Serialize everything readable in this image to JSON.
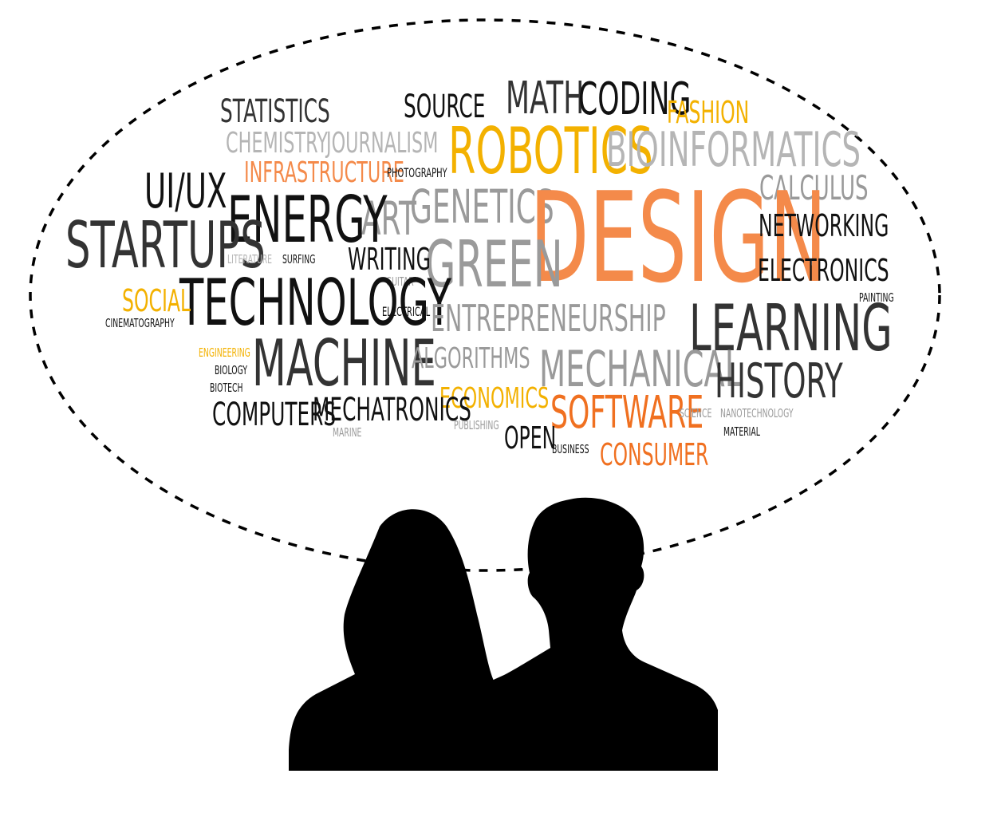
{
  "colors": {
    "black": "#111111",
    "dark_gray": "#333333",
    "gray": "#9a9a9a",
    "light_gray": "#b5b5b5",
    "orange": "#f48a4a",
    "orange_deep": "#f07020",
    "gold": "#f3b100",
    "silhouette": "#000000",
    "bubble_outline": "#000000"
  },
  "words": [
    {
      "id": "statistics",
      "text": "STATISTICS",
      "color": "dark_gray"
    },
    {
      "id": "source",
      "text": "SOURCE",
      "color": "black"
    },
    {
      "id": "math",
      "text": "MATH",
      "color": "dark_gray"
    },
    {
      "id": "coding",
      "text": "CODING",
      "color": "black"
    },
    {
      "id": "fashion",
      "text": "FASHION",
      "color": "gold"
    },
    {
      "id": "chemistry",
      "text": "CHEMISTRY",
      "color": "light_gray"
    },
    {
      "id": "journalism",
      "text": "JOURNALISM",
      "color": "light_gray"
    },
    {
      "id": "robotics",
      "text": "ROBOTICS",
      "color": "gold"
    },
    {
      "id": "bioinformatics",
      "text": "BIOINFORMATICS",
      "color": "light_gray"
    },
    {
      "id": "infrastructure",
      "text": "INFRASTRUCTURE",
      "color": "orange"
    },
    {
      "id": "photography",
      "text": "PHOTOGRAPHY",
      "color": "black"
    },
    {
      "id": "ui-ux",
      "text": "UI/UX",
      "color": "black"
    },
    {
      "id": "calculus",
      "text": "CALCULUS",
      "color": "gray"
    },
    {
      "id": "genetics",
      "text": "GENETICS",
      "color": "gray"
    },
    {
      "id": "art",
      "text": "ART",
      "color": "gray"
    },
    {
      "id": "design",
      "text": "DESIGN",
      "color": "orange"
    },
    {
      "id": "energy",
      "text": "ENERGY",
      "color": "black"
    },
    {
      "id": "networking",
      "text": "NETWORKING",
      "color": "black"
    },
    {
      "id": "startups",
      "text": "STARTUPS",
      "color": "dark_gray"
    },
    {
      "id": "green",
      "text": "GREEN",
      "color": "gray"
    },
    {
      "id": "writing",
      "text": "WRITING",
      "color": "black"
    },
    {
      "id": "literature",
      "text": "LITERATURE",
      "color": "light_gray"
    },
    {
      "id": "surfing",
      "text": "SURFING",
      "color": "black"
    },
    {
      "id": "electronics",
      "text": "ELECTRONICS",
      "color": "black"
    },
    {
      "id": "guitar",
      "text": "GUITAR",
      "color": "gray"
    },
    {
      "id": "technology",
      "text": "TECHNOLOGY",
      "color": "black"
    },
    {
      "id": "social",
      "text": "SOCIAL",
      "color": "gold"
    },
    {
      "id": "painting",
      "text": "PAINTING",
      "color": "black"
    },
    {
      "id": "entrepreneurship",
      "text": "ENTREPRENEURSHIP",
      "color": "gray"
    },
    {
      "id": "electrical",
      "text": "ELECTRICAL",
      "color": "black"
    },
    {
      "id": "cinematography",
      "text": "CINEMATOGRAPHY",
      "color": "black"
    },
    {
      "id": "learning",
      "text": "LEARNING",
      "color": "dark_gray"
    },
    {
      "id": "engineering",
      "text": "ENGINEERING",
      "color": "gold"
    },
    {
      "id": "machine",
      "text": "MACHINE",
      "color": "dark_gray"
    },
    {
      "id": "algorithms",
      "text": "ALGORITHMS",
      "color": "gray"
    },
    {
      "id": "mechanical",
      "text": "MECHANICAL",
      "color": "gray"
    },
    {
      "id": "biology",
      "text": "BIOLOGY",
      "color": "black"
    },
    {
      "id": "history",
      "text": "HISTORY",
      "color": "dark_gray"
    },
    {
      "id": "biotech",
      "text": "BIOTECH",
      "color": "black"
    },
    {
      "id": "economics",
      "text": "ECONOMICS",
      "color": "gold"
    },
    {
      "id": "computers",
      "text": "COMPUTERS",
      "color": "black"
    },
    {
      "id": "mechatronics",
      "text": "MECHATRONICS",
      "color": "black"
    },
    {
      "id": "software",
      "text": "SOFTWARE",
      "color": "orange_deep"
    },
    {
      "id": "science",
      "text": "SCIENCE",
      "color": "gray"
    },
    {
      "id": "nanotechnology",
      "text": "NANOTECHNOLOGY",
      "color": "gray"
    },
    {
      "id": "publishing",
      "text": "PUBLISHING",
      "color": "gray"
    },
    {
      "id": "marine",
      "text": "MARINE",
      "color": "gray"
    },
    {
      "id": "open",
      "text": "OPEN",
      "color": "black"
    },
    {
      "id": "material",
      "text": "MATERIAL",
      "color": "black"
    },
    {
      "id": "business",
      "text": "BUSINESS",
      "color": "black"
    },
    {
      "id": "consumer",
      "text": "CONSUMER",
      "color": "orange_deep"
    }
  ],
  "figures": [
    {
      "id": "woman-silhouette",
      "icon": "person-silhouette-long-hair"
    },
    {
      "id": "man-silhouette",
      "icon": "person-silhouette-short-hair"
    }
  ]
}
